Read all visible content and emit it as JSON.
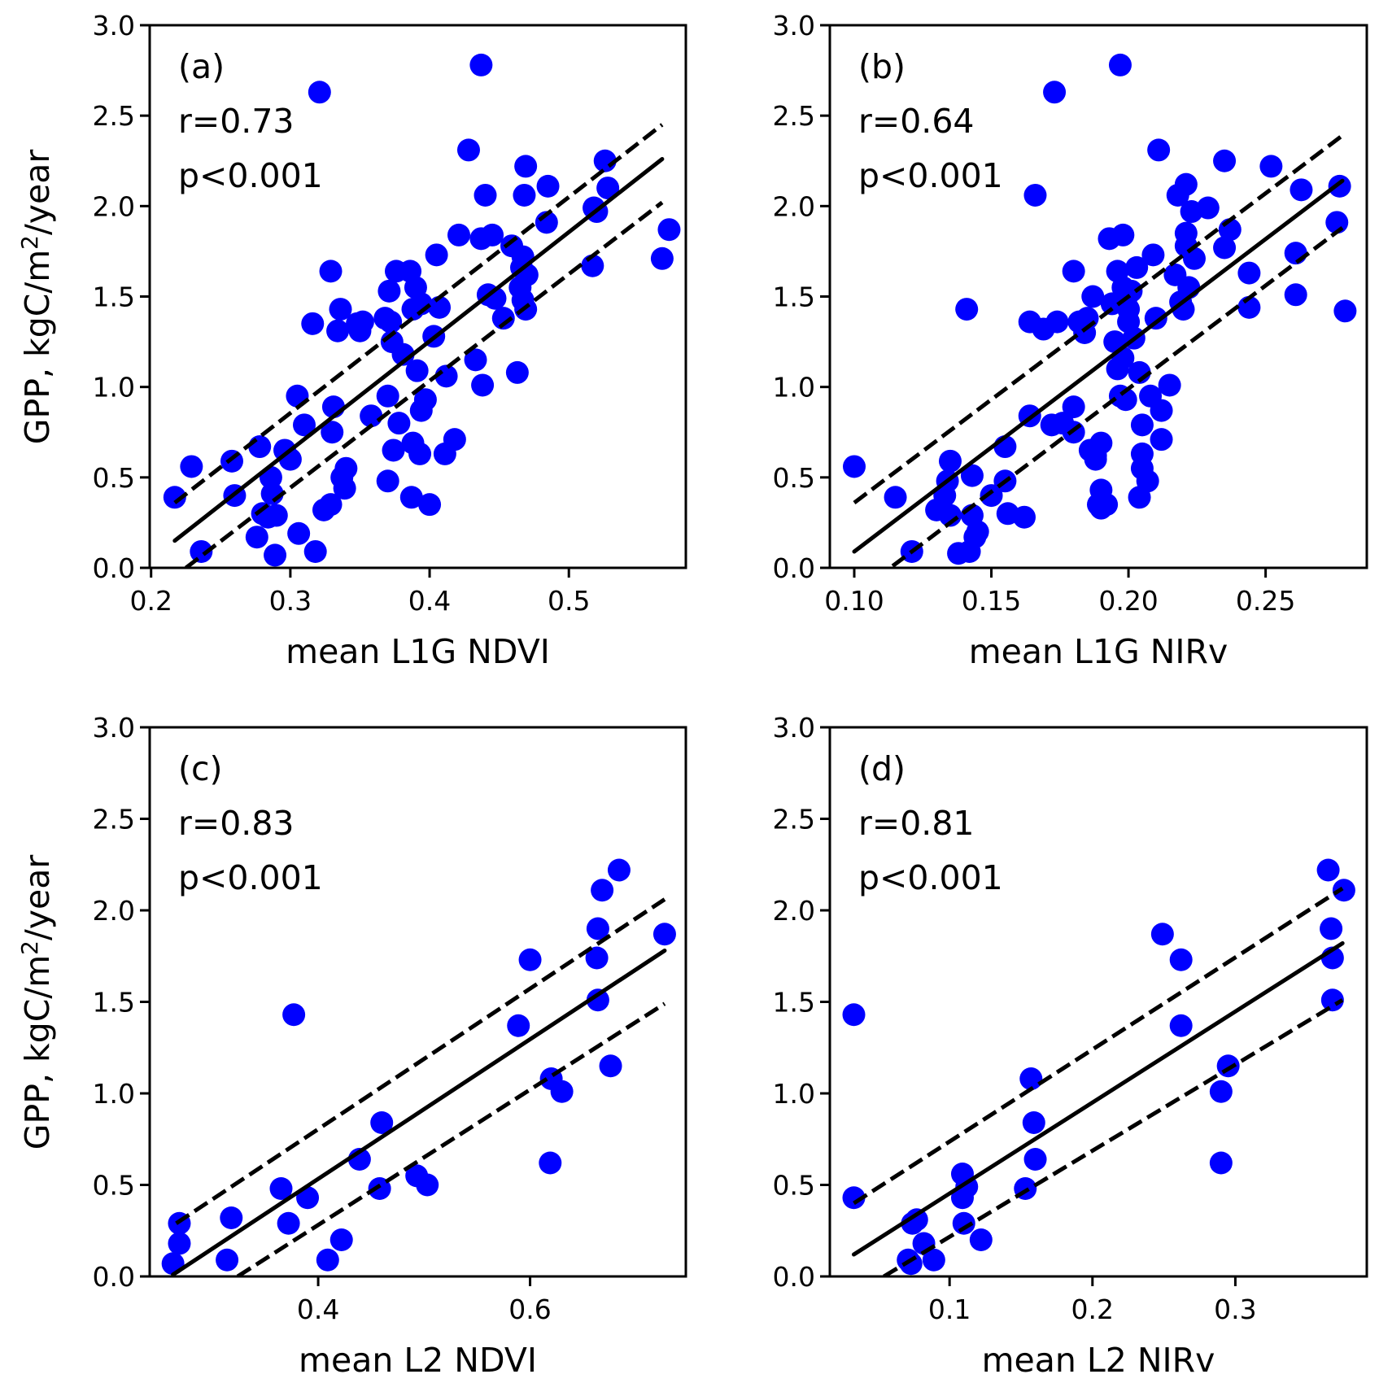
{
  "figure": {
    "shared_ylabel": "GPP, kgC/m",
    "shared_ylabel_sup": "2",
    "shared_ylabel_tail": "/year",
    "point_color": "#0000ff",
    "line_color": "#000000"
  },
  "chart_data": [
    {
      "type": "scatter",
      "panel": "(a)",
      "annotation_r": "r=0.73",
      "annotation_p": "p<0.001",
      "xlabel": "mean L1G NDVI",
      "ylabel": "GPP, kgC/m2/year",
      "xlim": [
        0.199,
        0.584
      ],
      "ylim": [
        0.0,
        3.0
      ],
      "xticks": [
        0.2,
        0.3,
        0.4,
        0.5
      ],
      "xtick_labels": [
        "0.2",
        "0.3",
        "0.4",
        "0.5"
      ],
      "yticks": [
        0.0,
        0.5,
        1.0,
        1.5,
        2.0,
        2.5,
        3.0
      ],
      "ytick_labels": [
        "0.0",
        "0.5",
        "1.0",
        "1.5",
        "2.0",
        "2.5",
        "3.0"
      ],
      "grid": false,
      "fit": {
        "x": [
          0.217,
          0.567
        ],
        "y": [
          0.15,
          2.26
        ]
      },
      "ci_upper": {
        "x": [
          0.217,
          0.567
        ],
        "y": [
          0.36,
          2.45
        ]
      },
      "ci_lower": {
        "x": [
          0.225,
          0.567
        ],
        "y": [
          0.0,
          2.02
        ]
      },
      "points": [
        [
          0.217,
          0.39
        ],
        [
          0.229,
          0.56
        ],
        [
          0.236,
          0.09
        ],
        [
          0.258,
          0.59
        ],
        [
          0.26,
          0.4
        ],
        [
          0.276,
          0.17
        ],
        [
          0.278,
          0.67
        ],
        [
          0.28,
          0.3
        ],
        [
          0.284,
          0.28
        ],
        [
          0.286,
          0.5
        ],
        [
          0.287,
          0.41
        ],
        [
          0.289,
          0.07
        ],
        [
          0.29,
          0.29
        ],
        [
          0.296,
          0.65
        ],
        [
          0.3,
          0.6
        ],
        [
          0.305,
          0.95
        ],
        [
          0.306,
          0.19
        ],
        [
          0.31,
          0.79
        ],
        [
          0.316,
          1.35
        ],
        [
          0.318,
          0.09
        ],
        [
          0.321,
          2.63
        ],
        [
          0.324,
          0.32
        ],
        [
          0.329,
          0.35
        ],
        [
          0.33,
          0.75
        ],
        [
          0.331,
          0.89
        ],
        [
          0.329,
          1.64
        ],
        [
          0.334,
          1.31
        ],
        [
          0.336,
          1.43
        ],
        [
          0.337,
          0.5
        ],
        [
          0.339,
          0.44
        ],
        [
          0.34,
          0.55
        ],
        [
          0.348,
          1.35
        ],
        [
          0.35,
          1.31
        ],
        [
          0.352,
          1.36
        ],
        [
          0.358,
          0.84
        ],
        [
          0.368,
          1.38
        ],
        [
          0.37,
          0.48
        ],
        [
          0.372,
          1.36
        ],
        [
          0.37,
          0.95
        ],
        [
          0.371,
          1.53
        ],
        [
          0.373,
          1.25
        ],
        [
          0.374,
          0.65
        ],
        [
          0.376,
          1.64
        ],
        [
          0.378,
          0.8
        ],
        [
          0.381,
          1.18
        ],
        [
          0.386,
          1.64
        ],
        [
          0.387,
          0.39
        ],
        [
          0.388,
          0.69
        ],
        [
          0.388,
          1.43
        ],
        [
          0.39,
          1.55
        ],
        [
          0.391,
          1.09
        ],
        [
          0.393,
          0.63
        ],
        [
          0.394,
          1.46
        ],
        [
          0.394,
          0.87
        ],
        [
          0.397,
          0.93
        ],
        [
          0.4,
          0.35
        ],
        [
          0.403,
          1.28
        ],
        [
          0.405,
          1.73
        ],
        [
          0.407,
          1.44
        ],
        [
          0.411,
          0.63
        ],
        [
          0.412,
          1.06
        ],
        [
          0.418,
          0.71
        ],
        [
          0.421,
          1.84
        ],
        [
          0.428,
          2.31
        ],
        [
          0.433,
          1.15
        ],
        [
          0.437,
          2.78
        ],
        [
          0.437,
          1.82
        ],
        [
          0.438,
          1.01
        ],
        [
          0.44,
          2.06
        ],
        [
          0.442,
          1.51
        ],
        [
          0.445,
          1.84
        ],
        [
          0.447,
          1.49
        ],
        [
          0.453,
          1.38
        ],
        [
          0.459,
          1.78
        ],
        [
          0.463,
          1.08
        ],
        [
          0.465,
          1.55
        ],
        [
          0.466,
          1.66
        ],
        [
          0.467,
          1.48
        ],
        [
          0.467,
          1.72
        ],
        [
          0.468,
          2.06
        ],
        [
          0.469,
          2.22
        ],
        [
          0.469,
          1.43
        ],
        [
          0.47,
          1.62
        ],
        [
          0.484,
          1.91
        ],
        [
          0.485,
          2.11
        ],
        [
          0.517,
          1.67
        ],
        [
          0.518,
          1.99
        ],
        [
          0.52,
          1.97
        ],
        [
          0.526,
          2.25
        ],
        [
          0.528,
          2.1
        ],
        [
          0.567,
          1.71
        ],
        [
          0.572,
          1.87
        ]
      ]
    },
    {
      "type": "scatter",
      "panel": "(b)",
      "annotation_r": "r=0.64",
      "annotation_p": "p<0.001",
      "xlabel": "mean L1G NIRv",
      "ylabel": "GPP, kgC/m2/year",
      "xlim": [
        0.0911,
        0.2869
      ],
      "ylim": [
        0.0,
        3.0
      ],
      "xticks": [
        0.1,
        0.15,
        0.2,
        0.25
      ],
      "xtick_labels": [
        "0.10",
        "0.15",
        "0.20",
        "0.25"
      ],
      "yticks": [
        0.0,
        0.5,
        1.0,
        1.5,
        2.0,
        2.5,
        3.0
      ],
      "ytick_labels": [
        "0.0",
        "0.5",
        "1.0",
        "1.5",
        "2.0",
        "2.5",
        "3.0"
      ],
      "grid": false,
      "fit": {
        "x": [
          0.1,
          0.278
        ],
        "y": [
          0.09,
          2.14
        ]
      },
      "ci_upper": {
        "x": [
          0.1,
          0.278
        ],
        "y": [
          0.36,
          2.39
        ]
      },
      "ci_lower": {
        "x": [
          0.114,
          0.278
        ],
        "y": [
          0.01,
          1.88
        ]
      },
      "points": [
        [
          0.1,
          0.56
        ],
        [
          0.115,
          0.39
        ],
        [
          0.121,
          0.09
        ],
        [
          0.13,
          0.32
        ],
        [
          0.133,
          0.4
        ],
        [
          0.134,
          0.48
        ],
        [
          0.135,
          0.59
        ],
        [
          0.135,
          0.29
        ],
        [
          0.138,
          0.08
        ],
        [
          0.141,
          1.43
        ],
        [
          0.142,
          0.09
        ],
        [
          0.143,
          0.51
        ],
        [
          0.143,
          0.29
        ],
        [
          0.144,
          0.17
        ],
        [
          0.145,
          0.2
        ],
        [
          0.15,
          0.4
        ],
        [
          0.155,
          0.48
        ],
        [
          0.155,
          0.67
        ],
        [
          0.156,
          0.3
        ],
        [
          0.162,
          0.28
        ],
        [
          0.164,
          0.84
        ],
        [
          0.164,
          1.36
        ],
        [
          0.166,
          2.06
        ],
        [
          0.169,
          1.32
        ],
        [
          0.172,
          0.79
        ],
        [
          0.173,
          2.63
        ],
        [
          0.174,
          1.36
        ],
        [
          0.176,
          0.8
        ],
        [
          0.18,
          0.75
        ],
        [
          0.18,
          1.64
        ],
        [
          0.18,
          0.89
        ],
        [
          0.182,
          1.36
        ],
        [
          0.184,
          1.3
        ],
        [
          0.185,
          1.38
        ],
        [
          0.186,
          0.65
        ],
        [
          0.187,
          1.5
        ],
        [
          0.188,
          0.6
        ],
        [
          0.188,
          0.62
        ],
        [
          0.189,
          0.35
        ],
        [
          0.19,
          0.43
        ],
        [
          0.19,
          0.69
        ],
        [
          0.19,
          0.33
        ],
        [
          0.192,
          0.35
        ],
        [
          0.193,
          1.82
        ],
        [
          0.194,
          1.46
        ],
        [
          0.195,
          1.25
        ],
        [
          0.196,
          1.64
        ],
        [
          0.196,
          1.1
        ],
        [
          0.197,
          2.78
        ],
        [
          0.197,
          0.95
        ],
        [
          0.198,
          1.84
        ],
        [
          0.198,
          1.55
        ],
        [
          0.198,
          1.16
        ],
        [
          0.199,
          0.93
        ],
        [
          0.199,
          1.48
        ],
        [
          0.2,
          1.36
        ],
        [
          0.2,
          1.43
        ],
        [
          0.201,
          1.53
        ],
        [
          0.202,
          1.27
        ],
        [
          0.203,
          1.66
        ],
        [
          0.204,
          1.08
        ],
        [
          0.204,
          0.39
        ],
        [
          0.205,
          0.63
        ],
        [
          0.205,
          0.79
        ],
        [
          0.205,
          0.55
        ],
        [
          0.207,
          0.48
        ],
        [
          0.208,
          0.95
        ],
        [
          0.209,
          1.73
        ],
        [
          0.21,
          1.38
        ],
        [
          0.211,
          2.31
        ],
        [
          0.212,
          0.87
        ],
        [
          0.212,
          0.71
        ],
        [
          0.215,
          1.01
        ],
        [
          0.217,
          1.62
        ],
        [
          0.218,
          2.06
        ],
        [
          0.219,
          1.47
        ],
        [
          0.22,
          1.43
        ],
        [
          0.221,
          1.85
        ],
        [
          0.221,
          1.78
        ],
        [
          0.221,
          2.12
        ],
        [
          0.222,
          1.55
        ],
        [
          0.223,
          1.97
        ],
        [
          0.224,
          1.71
        ],
        [
          0.229,
          1.99
        ],
        [
          0.235,
          2.25
        ],
        [
          0.235,
          1.77
        ],
        [
          0.237,
          1.87
        ],
        [
          0.244,
          1.63
        ],
        [
          0.244,
          1.44
        ],
        [
          0.252,
          2.22
        ],
        [
          0.261,
          1.74
        ],
        [
          0.261,
          1.51
        ],
        [
          0.263,
          2.09
        ],
        [
          0.276,
          1.91
        ],
        [
          0.277,
          2.11
        ],
        [
          0.279,
          1.42
        ]
      ]
    },
    {
      "type": "scatter",
      "panel": "(c)",
      "annotation_r": "r=0.83",
      "annotation_p": "p<0.001",
      "xlabel": "mean L2 NDVI",
      "ylabel": "GPP, kgC/m2/year",
      "xlim": [
        0.241,
        0.747
      ],
      "ylim": [
        0.0,
        3.0
      ],
      "xticks": [
        0.4,
        0.6
      ],
      "xtick_labels": [
        "0.4",
        "0.6"
      ],
      "yticks": [
        0.0,
        0.5,
        1.0,
        1.5,
        2.0,
        2.5,
        3.0
      ],
      "ytick_labels": [
        "0.0",
        "0.5",
        "1.0",
        "1.5",
        "2.0",
        "2.5",
        "3.0"
      ],
      "grid": false,
      "fit": {
        "x": [
          0.263,
          0.727
        ],
        "y": [
          0.01,
          1.78
        ]
      },
      "ci_upper": {
        "x": [
          0.266,
          0.727
        ],
        "y": [
          0.29,
          2.06
        ]
      },
      "ci_lower": {
        "x": [
          0.324,
          0.727
        ],
        "y": [
          0.0,
          1.49
        ]
      },
      "points": [
        [
          0.263,
          0.07
        ],
        [
          0.269,
          0.18
        ],
        [
          0.269,
          0.29
        ],
        [
          0.314,
          0.09
        ],
        [
          0.318,
          0.32
        ],
        [
          0.365,
          0.48
        ],
        [
          0.372,
          0.29
        ],
        [
          0.377,
          1.43
        ],
        [
          0.39,
          0.43
        ],
        [
          0.409,
          0.09
        ],
        [
          0.422,
          0.2
        ],
        [
          0.439,
          0.64
        ],
        [
          0.458,
          0.48
        ],
        [
          0.46,
          0.84
        ],
        [
          0.493,
          0.55
        ],
        [
          0.503,
          0.5
        ],
        [
          0.589,
          1.37
        ],
        [
          0.6,
          1.73
        ],
        [
          0.619,
          0.62
        ],
        [
          0.62,
          1.08
        ],
        [
          0.63,
          1.01
        ],
        [
          0.663,
          1.74
        ],
        [
          0.664,
          1.51
        ],
        [
          0.664,
          1.9
        ],
        [
          0.668,
          2.11
        ],
        [
          0.676,
          1.15
        ],
        [
          0.684,
          2.22
        ],
        [
          0.727,
          1.87
        ]
      ]
    },
    {
      "type": "scatter",
      "panel": "(d)",
      "annotation_r": "r=0.81",
      "annotation_p": "p<0.001",
      "xlabel": "mean L2 NIRv",
      "ylabel": "GPP, kgC/m2/year",
      "xlim": [
        0.0162,
        0.392
      ],
      "ylim": [
        0.0,
        3.0
      ],
      "xticks": [
        0.1,
        0.2,
        0.3
      ],
      "xtick_labels": [
        "0.1",
        "0.2",
        "0.3"
      ],
      "yticks": [
        0.0,
        0.5,
        1.0,
        1.5,
        2.0,
        2.5,
        3.0
      ],
      "ytick_labels": [
        "0.0",
        "0.5",
        "1.0",
        "1.5",
        "2.0",
        "2.5",
        "3.0"
      ],
      "grid": false,
      "fit": {
        "x": [
          0.033,
          0.375
        ],
        "y": [
          0.12,
          1.82
        ]
      },
      "ci_upper": {
        "x": [
          0.033,
          0.375
        ],
        "y": [
          0.4,
          2.12
        ]
      },
      "ci_lower": {
        "x": [
          0.054,
          0.375
        ],
        "y": [
          0.0,
          1.51
        ]
      },
      "points": [
        [
          0.033,
          0.43
        ],
        [
          0.071,
          0.09
        ],
        [
          0.073,
          0.07
        ],
        [
          0.074,
          0.29
        ],
        [
          0.077,
          0.31
        ],
        [
          0.082,
          0.18
        ],
        [
          0.089,
          0.09
        ],
        [
          0.109,
          0.56
        ],
        [
          0.109,
          0.43
        ],
        [
          0.11,
          0.29
        ],
        [
          0.112,
          0.49
        ],
        [
          0.122,
          0.2
        ],
        [
          0.153,
          0.48
        ],
        [
          0.157,
          1.08
        ],
        [
          0.159,
          0.84
        ],
        [
          0.16,
          0.64
        ],
        [
          0.249,
          1.87
        ],
        [
          0.262,
          1.73
        ],
        [
          0.262,
          1.37
        ],
        [
          0.29,
          1.01
        ],
        [
          0.29,
          0.62
        ],
        [
          0.295,
          1.15
        ],
        [
          0.365,
          2.22
        ],
        [
          0.367,
          1.9
        ],
        [
          0.368,
          1.74
        ],
        [
          0.368,
          1.51
        ],
        [
          0.376,
          2.11
        ]
      ],
      "points_note_outlier": [
        0.033,
        1.43
      ]
    }
  ]
}
